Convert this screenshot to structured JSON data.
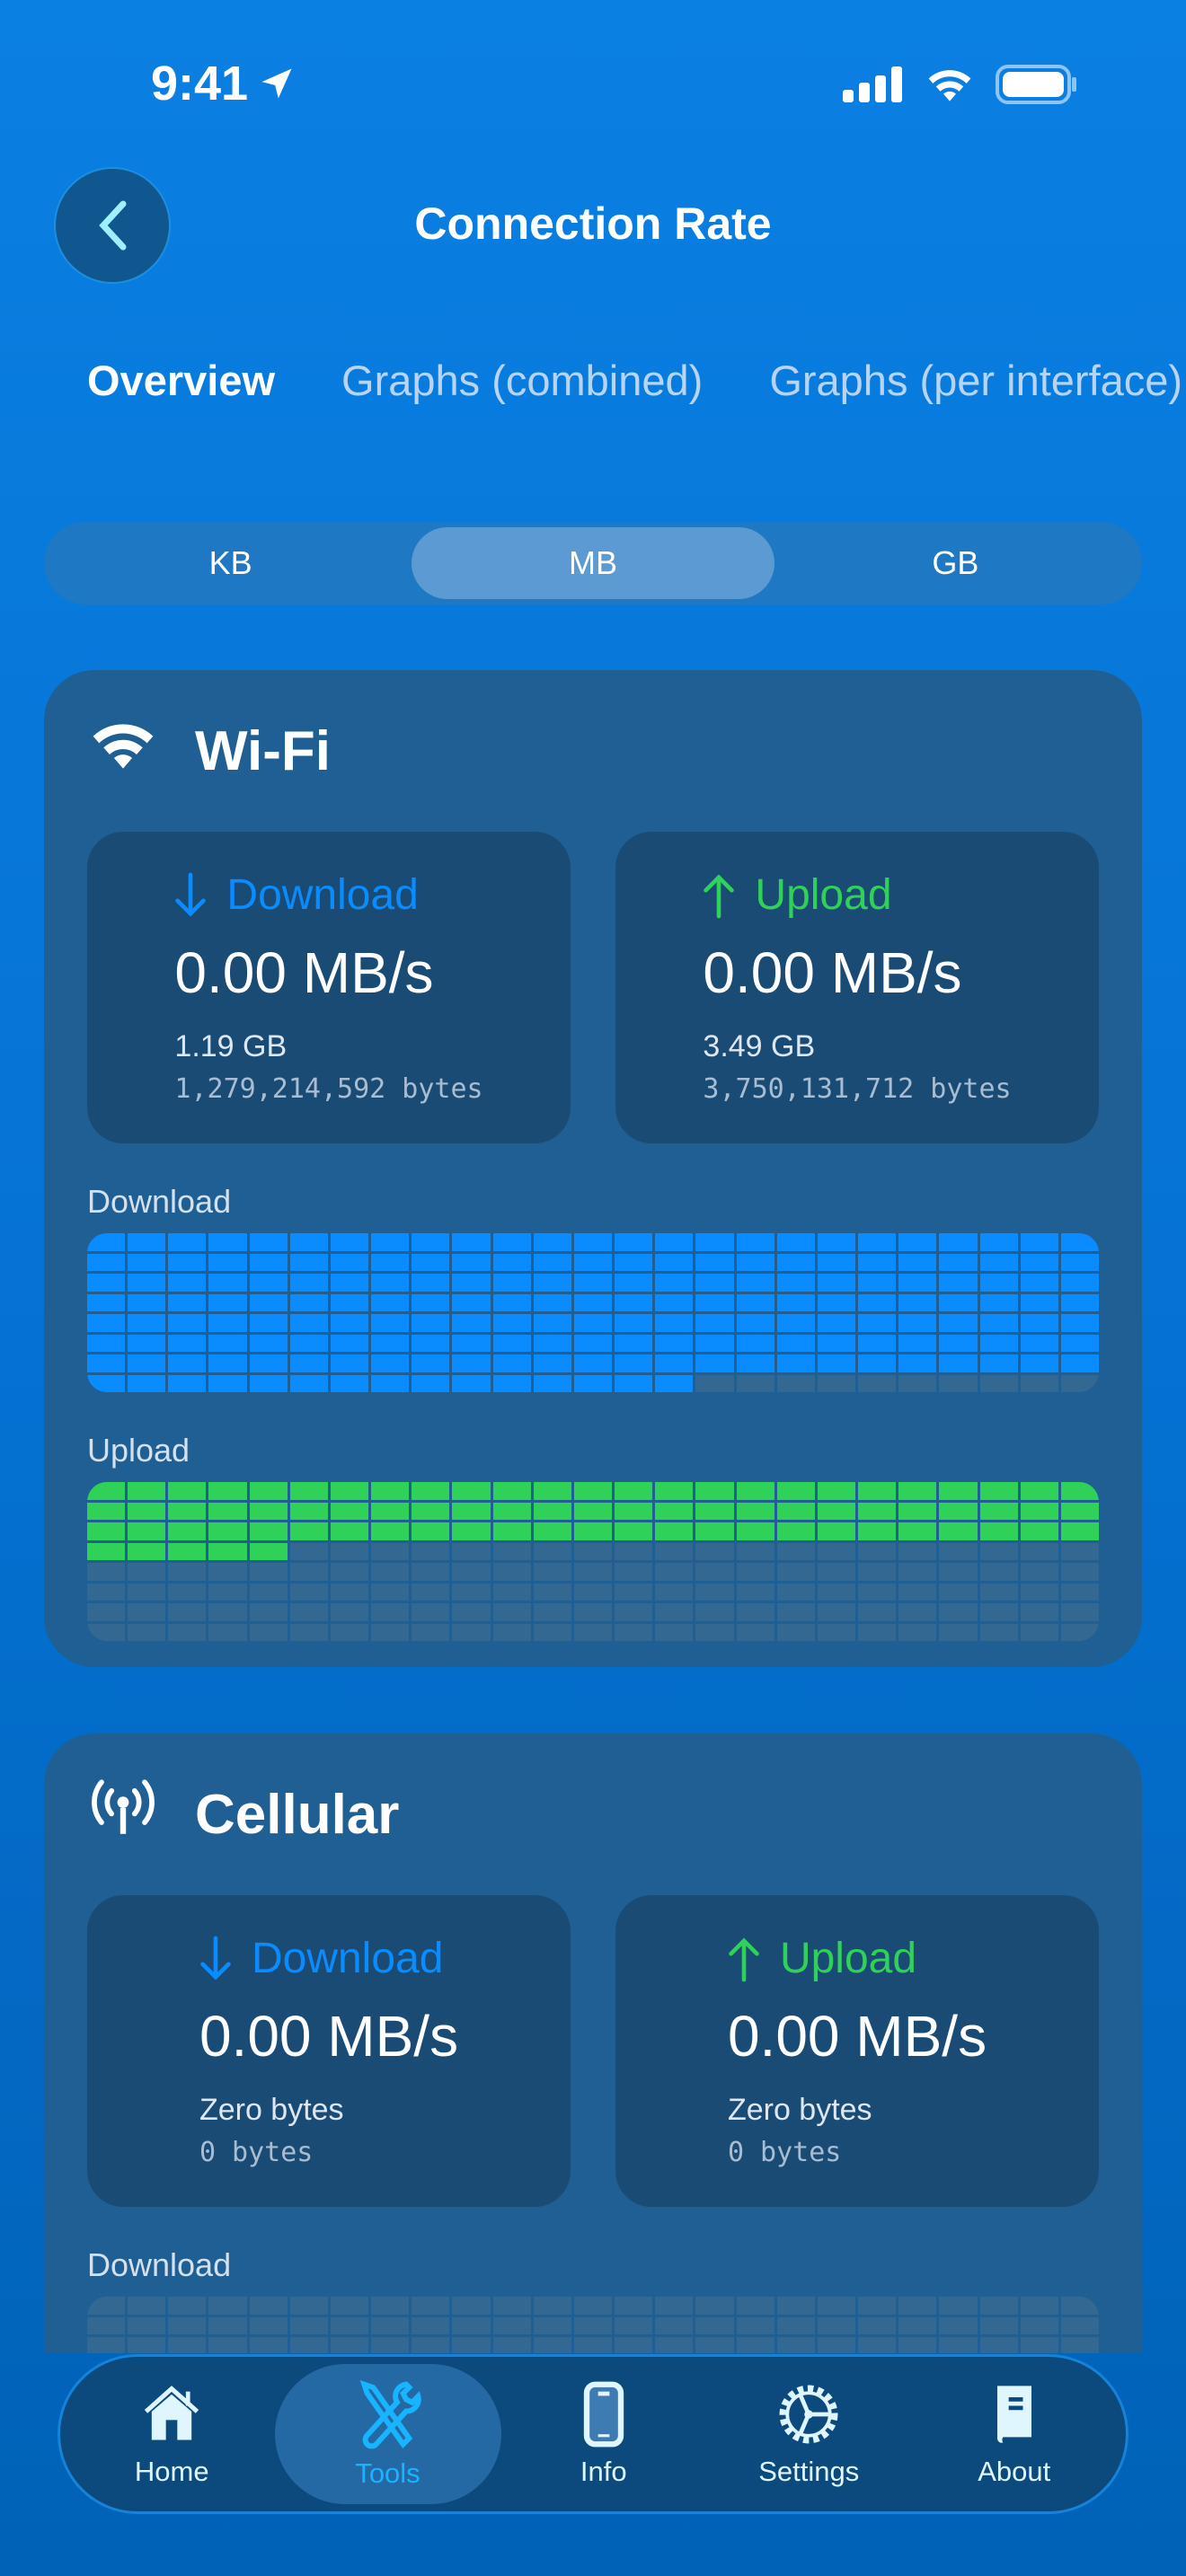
{
  "status": {
    "time": "9:41"
  },
  "header": {
    "title": "Connection Rate"
  },
  "tabs": [
    {
      "label": "Overview",
      "active": true
    },
    {
      "label": "Graphs (combined)",
      "active": false
    },
    {
      "label": "Graphs (per interface)",
      "active": false
    }
  ],
  "units": {
    "options": [
      "KB",
      "MB",
      "GB"
    ],
    "selected": "MB"
  },
  "colors": {
    "download": "#0a8cff",
    "upload": "#30d158",
    "empty": "#336892"
  },
  "interfaces": [
    {
      "name": "Wi-Fi",
      "icon": "wifi-icon",
      "download": {
        "label": "Download",
        "rate": "0.00 MB/s",
        "total": "1.19 GB",
        "bytes": "1,279,214,592 bytes"
      },
      "upload": {
        "label": "Upload",
        "rate": "0.00 MB/s",
        "total": "3.49 GB",
        "bytes": "3,750,131,712 bytes"
      },
      "graphs": [
        {
          "label": "Download",
          "fill_fraction": 0.95,
          "kind": "download"
        },
        {
          "label": "Upload",
          "fill_fraction": 0.4,
          "kind": "upload"
        }
      ]
    },
    {
      "name": "Cellular",
      "icon": "cellular-antenna-icon",
      "download": {
        "label": "Download",
        "rate": "0.00 MB/s",
        "total": "Zero bytes",
        "bytes": "0 bytes"
      },
      "upload": {
        "label": "Upload",
        "rate": "0.00 MB/s",
        "total": "Zero bytes",
        "bytes": "0 bytes"
      },
      "graphs": [
        {
          "label": "Download",
          "fill_fraction": 0,
          "kind": "download"
        }
      ]
    }
  ],
  "tabbar": [
    {
      "label": "Home",
      "icon": "home-icon"
    },
    {
      "label": "Tools",
      "icon": "tools-icon",
      "selected": true
    },
    {
      "label": "Info",
      "icon": "phone-icon"
    },
    {
      "label": "Settings",
      "icon": "gear-icon"
    },
    {
      "label": "About",
      "icon": "book-icon"
    }
  ]
}
